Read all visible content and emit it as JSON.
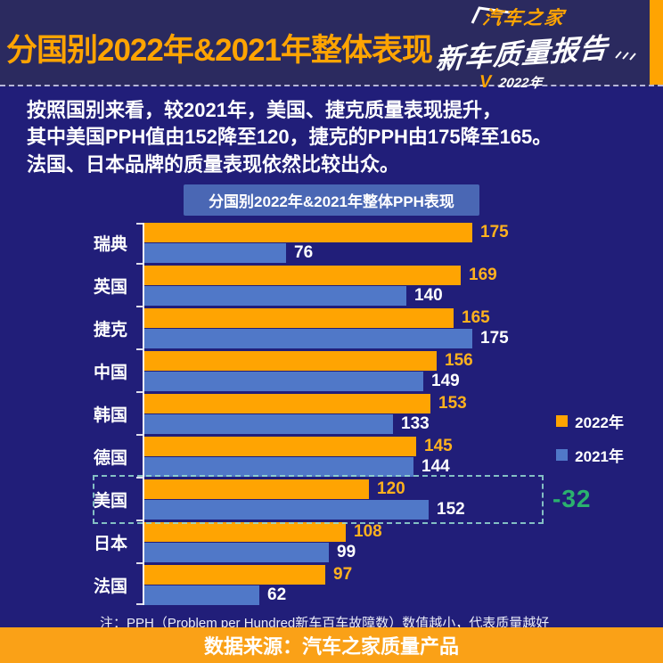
{
  "header": {
    "title": "分国别2022年&2021年整体表现",
    "logo": {
      "brand": "汽车之家",
      "product": "新车质量报告",
      "year": "2022年",
      "check_icon": "V"
    }
  },
  "intro": {
    "lines": [
      "按照国别来看，较2021年，美国、捷克质量表现提升，",
      "其中美国PPH值由152降至120，捷克的PPH由175降至165。",
      "法国、日本品牌的质量表现依然比较出众。"
    ]
  },
  "chart_data": {
    "type": "bar",
    "orientation": "horizontal",
    "title": "分国别2022年&2021年整体PPH表现",
    "categories": [
      "瑞典",
      "英国",
      "捷克",
      "中国",
      "韩国",
      "德国",
      "美国",
      "日本",
      "法国"
    ],
    "series": [
      {
        "name": "2022年",
        "color": "#ffa402",
        "values": [
          175,
          169,
          165,
          156,
          153,
          145,
          120,
          108,
          97
        ]
      },
      {
        "name": "2021年",
        "color": "#5078c8",
        "values": [
          76,
          140,
          175,
          149,
          133,
          144,
          152,
          99,
          62
        ]
      }
    ],
    "xlim": [
      0,
      175
    ],
    "grid": false,
    "legend_position": "right",
    "annotations": [
      {
        "category": "美国",
        "text": "-32",
        "color": "#2bb26e",
        "highlight_box": true
      }
    ],
    "note": "注：PPH（Problem per Hundred新车百车故障数）数值越小，代表质量越好"
  },
  "footer": {
    "text": "数据来源：汽车之家质量产品"
  },
  "colors": {
    "header_bg": "#2b2a5f",
    "body_bg": "#211e79",
    "accent_orange": "#ffa402",
    "bar_blue": "#5078c8",
    "title_pill_bg": "#4a67b4",
    "delta_green": "#2bb26e",
    "value_orange": "#ffb11e"
  }
}
